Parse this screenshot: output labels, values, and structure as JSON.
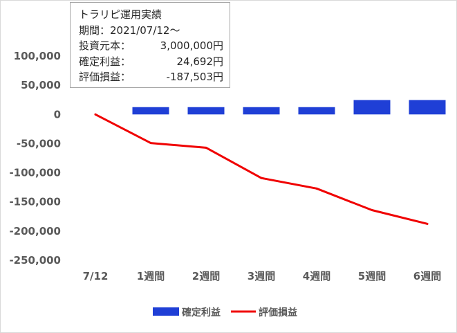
{
  "info_box": {
    "title": "トラリピ運用実績",
    "period": "期間：2021/07/12～",
    "rows": [
      {
        "label": "投資元本：",
        "value": "3,000,000円"
      },
      {
        "label": "確定利益：",
        "value": "24,692円"
      },
      {
        "label": "評価損益：",
        "value": "-187,503円"
      }
    ]
  },
  "chart_data": {
    "type": "bar+line",
    "categories": [
      "7/12",
      "1週間",
      "2週間",
      "3週間",
      "4週間",
      "5週間",
      "6週間"
    ],
    "series": [
      {
        "name": "確定利益",
        "type": "bar",
        "color": "#1f3fd6",
        "values": [
          null,
          12500,
          12500,
          12500,
          12500,
          24692,
          24692
        ]
      },
      {
        "name": "評価損益",
        "type": "line",
        "color": "#f00000",
        "values": [
          0,
          -49000,
          -57000,
          -109000,
          -127000,
          -164000,
          -187503
        ]
      }
    ],
    "y_ticks": [
      "100,000",
      "50,000",
      "0",
      "-50,000",
      "-100,000",
      "-150,000",
      "-200,000",
      "-250,000"
    ],
    "ylim": [
      -250000,
      100000
    ],
    "grid": false,
    "legend_position": "bottom"
  }
}
